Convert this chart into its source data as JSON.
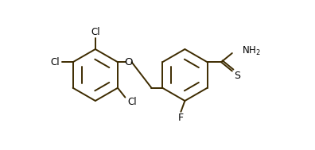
{
  "bg_color": "#ffffff",
  "bond_color": "#3d2b00",
  "bond_lw": 1.4,
  "text_color": "#000000",
  "fig_w": 3.96,
  "fig_h": 1.89,
  "dpi": 100,
  "xlim": [
    0.0,
    5.2
  ],
  "ylim": [
    -0.3,
    2.7
  ]
}
